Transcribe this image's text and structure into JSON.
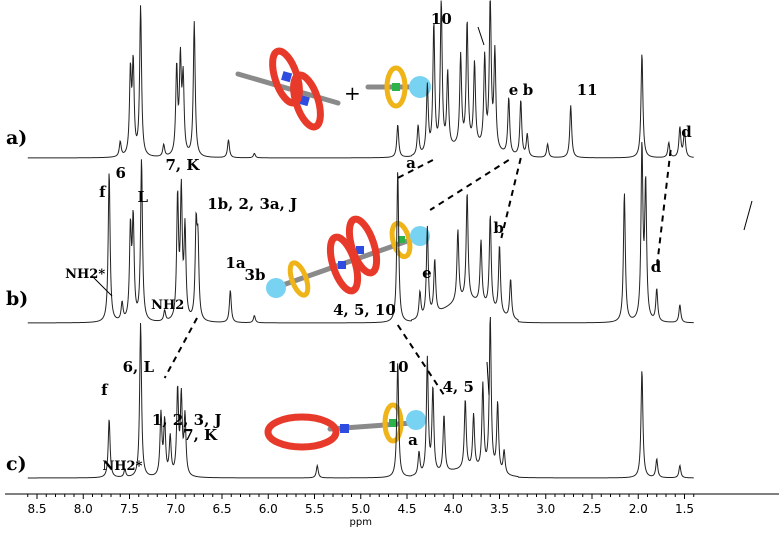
{
  "chart_data": {
    "type": "line",
    "title": "",
    "xlabel": "ppm",
    "ylabel": "",
    "xlim": [
      8.6,
      1.4
    ],
    "x_ticks": [
      "8.5",
      "8.0",
      "7.5",
      "7.0",
      "6.5",
      "6.0",
      "5.5",
      "5.0",
      "4.5",
      "4.0",
      "3.5",
      "3.0",
      "2.5",
      "2.0",
      "1.5"
    ],
    "x_tick_values": [
      8.5,
      8.0,
      7.5,
      7.0,
      6.5,
      6.0,
      5.5,
      5.0,
      4.5,
      4.0,
      3.5,
      3.0,
      2.5,
      2.0,
      1.5
    ],
    "grid": false,
    "series": [
      {
        "label": "a)",
        "peaks": [
          [
            7.6,
            0.1
          ],
          [
            7.49,
            0.55
          ],
          [
            7.46,
            0.6
          ],
          [
            7.38,
            1.0
          ],
          [
            7.13,
            0.08
          ],
          [
            6.99,
            0.58
          ],
          [
            6.95,
            0.62
          ],
          [
            6.92,
            0.5
          ],
          [
            6.8,
            0.9
          ],
          [
            6.43,
            0.12
          ],
          [
            6.15,
            0.03
          ],
          [
            4.6,
            0.22
          ],
          [
            4.38,
            0.2
          ],
          [
            4.28,
            0.45
          ],
          [
            4.21,
            0.85
          ],
          [
            4.13,
            1.0
          ],
          [
            4.06,
            0.5
          ],
          [
            3.92,
            0.6
          ],
          [
            3.85,
            0.82
          ],
          [
            3.77,
            0.55
          ],
          [
            3.66,
            0.6
          ],
          [
            3.6,
            1.0
          ],
          [
            3.55,
            0.65
          ],
          [
            3.4,
            0.38
          ],
          [
            3.27,
            0.38
          ],
          [
            3.2,
            0.15
          ],
          [
            2.98,
            0.09
          ],
          [
            2.73,
            0.35
          ],
          [
            1.96,
            0.7
          ],
          [
            1.67,
            0.1
          ],
          [
            1.55,
            0.2
          ],
          [
            1.5,
            0.18
          ]
        ],
        "annotations": [
          {
            "text": "10",
            "ppm": 4.22
          },
          {
            "text": "e",
            "ppm": 3.4
          },
          {
            "text": "b",
            "ppm": 3.27
          },
          {
            "text": "11",
            "ppm": 2.73
          },
          {
            "text": "d",
            "ppm": 1.6
          }
        ]
      },
      {
        "label": "b)",
        "peaks": [
          [
            7.72,
            0.84
          ],
          [
            7.58,
            0.1
          ],
          [
            7.49,
            0.5
          ],
          [
            7.46,
            0.55
          ],
          [
            7.37,
            0.9
          ],
          [
            7.12,
            0.06
          ],
          [
            6.98,
            0.68
          ],
          [
            6.94,
            0.7
          ],
          [
            6.9,
            0.5
          ],
          [
            6.78,
            0.5
          ],
          [
            6.76,
            0.4
          ],
          [
            6.41,
            0.18
          ],
          [
            6.15,
            0.04
          ],
          [
            4.6,
            0.85
          ],
          [
            4.36,
            0.15
          ],
          [
            4.28,
            0.5
          ],
          [
            4.2,
            0.3
          ],
          [
            3.95,
            0.4
          ],
          [
            3.85,
            0.6
          ],
          [
            3.7,
            0.35
          ],
          [
            3.6,
            0.52
          ],
          [
            3.5,
            0.38
          ],
          [
            3.38,
            0.22
          ],
          [
            2.15,
            0.72
          ],
          [
            1.96,
            0.96
          ],
          [
            1.92,
            0.75
          ],
          [
            1.8,
            0.18
          ],
          [
            1.55,
            0.1
          ]
        ],
        "annotations": [
          {
            "text": "f",
            "ppm": 7.72
          },
          {
            "text": "NH2*",
            "ppm": 7.85
          },
          {
            "text": "6",
            "ppm": 7.5
          },
          {
            "text": "L",
            "ppm": 7.37
          },
          {
            "text": "NH2",
            "ppm": 7.18
          },
          {
            "text": "7, K",
            "ppm": 6.96
          },
          {
            "text": "1b, 2, 3a, J",
            "ppm": 6.66
          },
          {
            "text": "1a",
            "ppm": 6.42
          },
          {
            "text": "3b",
            "ppm": 6.17
          },
          {
            "text": "4, 5, 10",
            "ppm": 4.65
          },
          {
            "text": "a",
            "ppm": 4.38
          },
          {
            "text": "e",
            "ppm": 4.25
          },
          {
            "text": "b",
            "ppm": 3.48
          },
          {
            "text": "d",
            "ppm": 1.8
          }
        ]
      },
      {
        "label": "c)",
        "peaks": [
          [
            7.72,
            0.38
          ],
          [
            7.55,
            0.05
          ],
          [
            7.38,
            1.0
          ],
          [
            7.16,
            0.4
          ],
          [
            7.12,
            0.35
          ],
          [
            7.06,
            0.25
          ],
          [
            6.98,
            0.55
          ],
          [
            6.94,
            0.5
          ],
          [
            6.9,
            0.38
          ],
          [
            5.47,
            0.08
          ],
          [
            4.6,
            0.75
          ],
          [
            4.37,
            0.15
          ],
          [
            4.28,
            0.75
          ],
          [
            4.22,
            0.55
          ],
          [
            4.1,
            0.37
          ],
          [
            3.87,
            0.45
          ],
          [
            3.78,
            0.35
          ],
          [
            3.68,
            0.55
          ],
          [
            3.6,
            1.0
          ],
          [
            3.52,
            0.45
          ],
          [
            3.45,
            0.15
          ],
          [
            1.96,
            0.7
          ],
          [
            1.8,
            0.12
          ],
          [
            1.55,
            0.08
          ]
        ],
        "annotations": [
          {
            "text": "f",
            "ppm": 7.72
          },
          {
            "text": "NH2*",
            "ppm": 7.62
          },
          {
            "text": "6, L",
            "ppm": 7.38
          },
          {
            "text": "1, 2, 3, J",
            "ppm": 7.02
          },
          {
            "text": "7, K",
            "ppm": 6.92
          },
          {
            "text": "10",
            "ppm": 4.6
          },
          {
            "text": "a",
            "ppm": 4.38
          },
          {
            "text": "4, 5",
            "ppm": 4.05
          }
        ]
      }
    ],
    "correlation_links": [
      {
        "from": {
          "spectrum": "a)",
          "ppm": 4.22
        },
        "to": {
          "spectrum": "b)",
          "ppm": 4.6
        }
      },
      {
        "from": {
          "spectrum": "a)",
          "ppm": 3.4
        },
        "to": {
          "spectrum": "b)",
          "ppm": 4.25
        }
      },
      {
        "from": {
          "spectrum": "a)",
          "ppm": 3.27
        },
        "to": {
          "spectrum": "b)",
          "ppm": 3.48
        }
      },
      {
        "from": {
          "spectrum": "a)",
          "ppm": 1.65
        },
        "to": {
          "spectrum": "b)",
          "ppm": 1.8
        }
      },
      {
        "from": {
          "spectrum": "b)",
          "ppm": 6.77
        },
        "to": {
          "spectrum": "c)",
          "ppm": 7.12
        }
      },
      {
        "from": {
          "spectrum": "b)",
          "ppm": 4.6
        },
        "to": {
          "spectrum": "c)",
          "ppm": 4.1
        }
      }
    ],
    "colors": {
      "trace": "#222222",
      "macrocycle": "#e83a2a",
      "stopper": "#efb418",
      "stopper_ball": "#78d3f2",
      "axle": "#8a8a8a",
      "station_blue": "#2e4ce0",
      "station_green": "#2bb34a"
    },
    "plus_sign": "+"
  }
}
